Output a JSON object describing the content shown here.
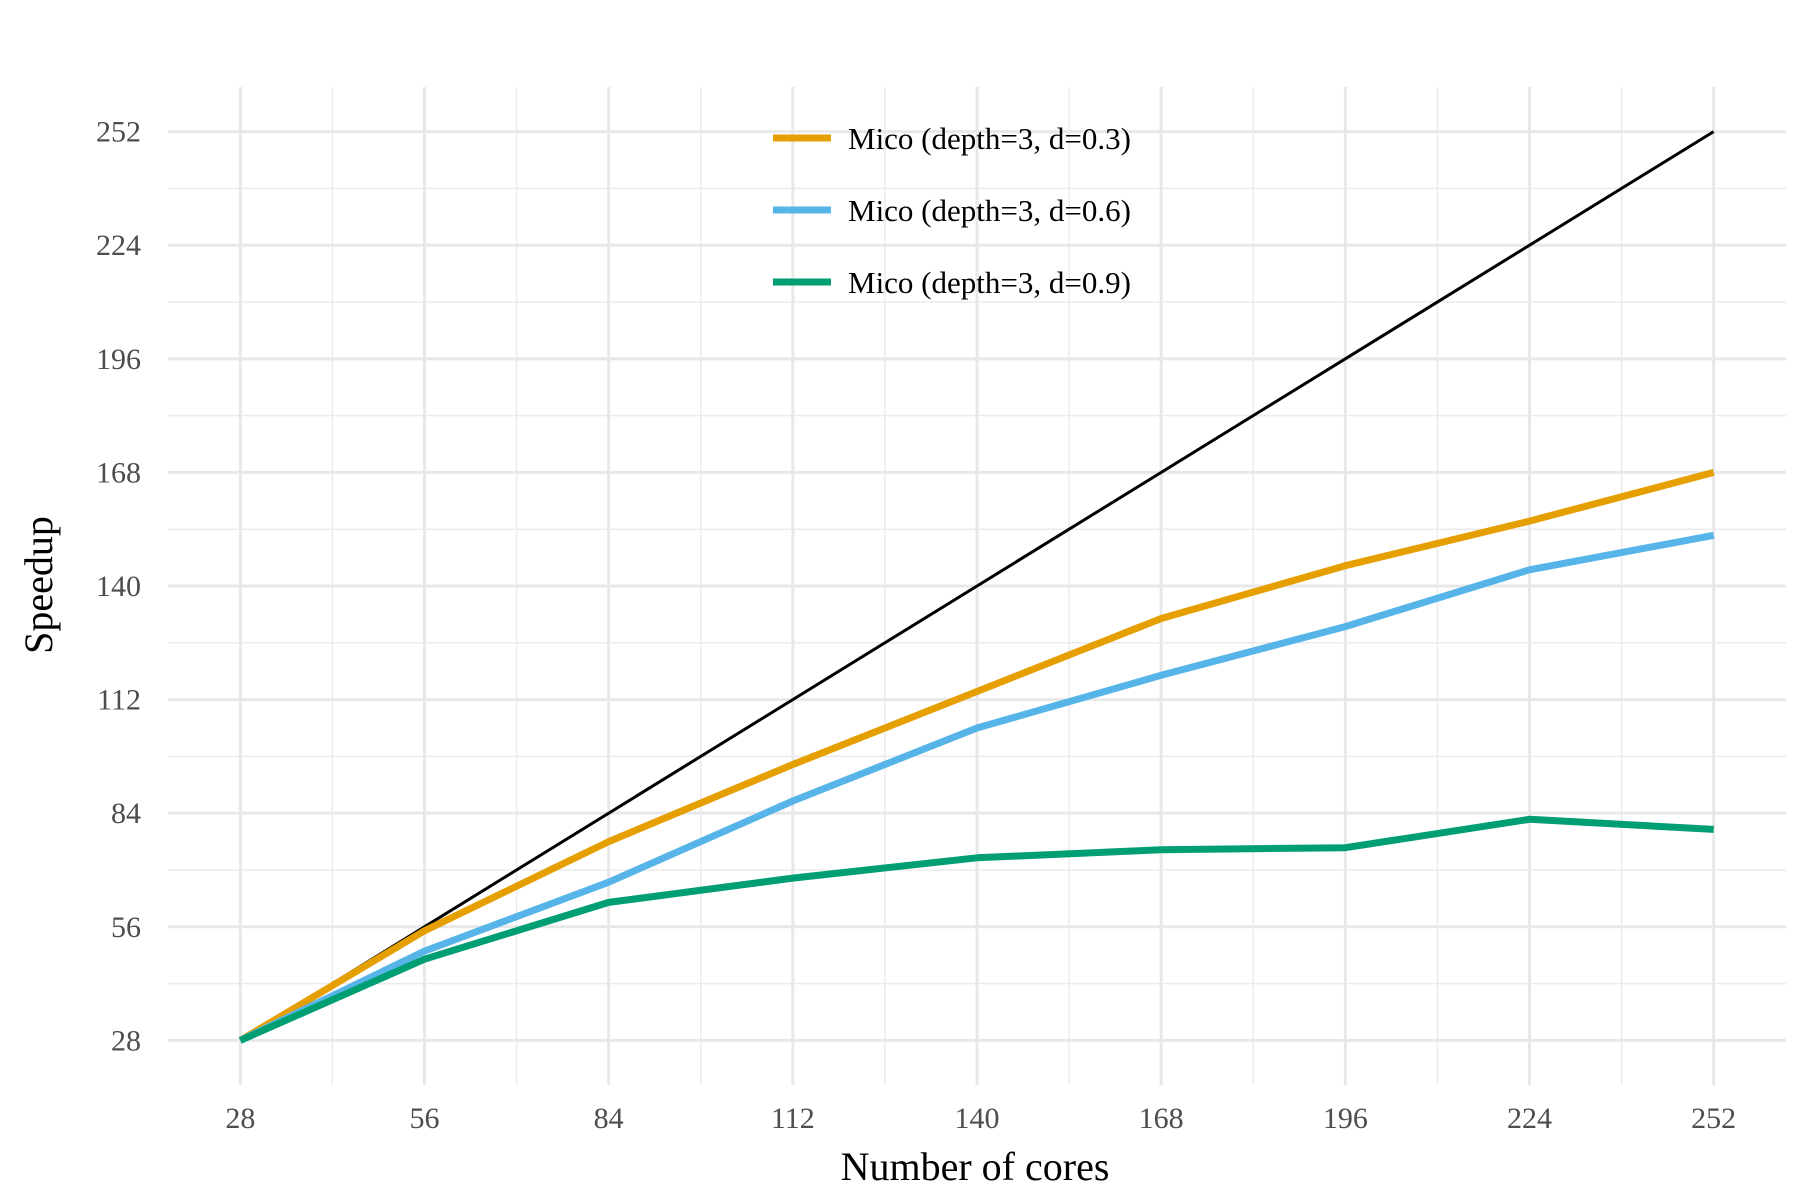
{
  "chart_data": {
    "type": "line",
    "xlabel": "Number of cores",
    "ylabel": "Speedup",
    "x": [
      28,
      56,
      84,
      112,
      140,
      168,
      196,
      224,
      252
    ],
    "xlim": [
      17,
      263
    ],
    "ylim": [
      17,
      263
    ],
    "xticks": [
      28,
      56,
      84,
      112,
      140,
      168,
      196,
      224,
      252
    ],
    "yticks": [
      28,
      56,
      84,
      112,
      140,
      168,
      196,
      224,
      252
    ],
    "grid": true,
    "legend_position": "top-center",
    "reference_line": {
      "x": [
        28,
        252
      ],
      "y": [
        28,
        252
      ],
      "color": "#000000"
    },
    "series": [
      {
        "name": "Mico (depth=3, d=0.3)",
        "color": "#E69F00",
        "values": [
          28,
          55,
          77,
          96,
          114,
          132,
          145,
          156,
          168
        ]
      },
      {
        "name": "Mico (depth=3, d=0.6)",
        "color": "#56B4E9",
        "values": [
          28,
          50,
          67,
          87,
          105,
          118,
          130,
          144,
          152.5
        ]
      },
      {
        "name": "Mico (depth=3, d=0.9)",
        "color": "#009E73",
        "values": [
          28,
          48,
          62,
          68,
          73,
          75,
          75.5,
          82.5,
          80
        ]
      }
    ]
  }
}
